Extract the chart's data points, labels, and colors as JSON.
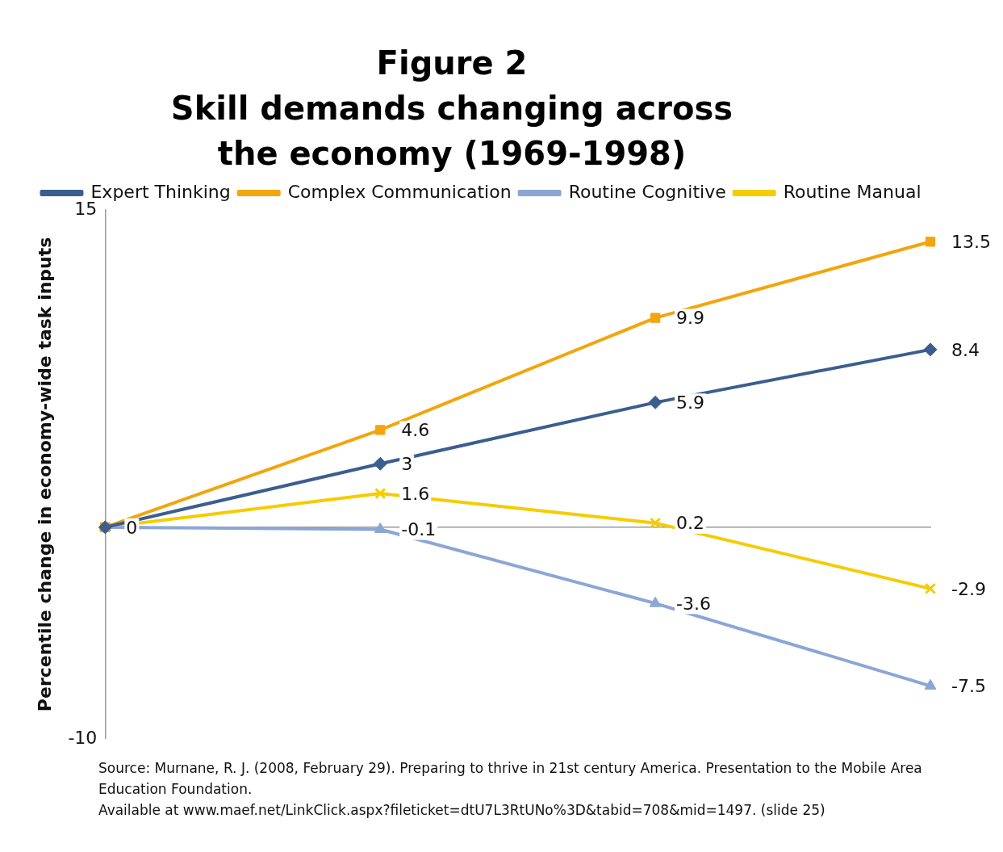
{
  "chart_data": {
    "type": "line",
    "title": "Figure 2",
    "subtitle": "Skill demands changing across the economy (1969-1998)",
    "ylabel": "Percentile change in economy-wide task inputs",
    "categories": [
      null,
      null,
      null,
      null
    ],
    "series": [
      {
        "name": "Expert Thinking",
        "color": "#3b5e8f",
        "marker": "diamond",
        "values": [
          0,
          3,
          5.9,
          8.4
        ],
        "value_labels": [
          null,
          "3",
          "5.9",
          "8.4"
        ]
      },
      {
        "name": "Complex Communication",
        "color": "#f2a50c",
        "marker": "square",
        "values": [
          0,
          4.6,
          9.9,
          13.5
        ],
        "value_labels": [
          null,
          "4.6",
          "9.9",
          "13.5"
        ]
      },
      {
        "name": "Routine Cognitive",
        "color": "#8ba6d6",
        "marker": "triangle",
        "values": [
          0,
          -0.1,
          -3.6,
          -7.5
        ],
        "value_labels": [
          null,
          "-0.1",
          "-3.6",
          "-7.5"
        ]
      },
      {
        "name": "Routine Manual",
        "color": "#f5cc00",
        "marker": "cross",
        "values": [
          0,
          1.6,
          0.2,
          -2.9
        ],
        "value_labels": [
          "0",
          "1.6",
          "0.2",
          "-2.9"
        ]
      }
    ],
    "ylim": [
      -10,
      15
    ],
    "yticks": [
      -10,
      15
    ],
    "grid": false,
    "legend": "top",
    "tick_labels": "y",
    "annotations": [
      "Source: Murnane, R. J. (2008, February 29). Preparing to thrive in 21st century America. Presentation to the Mobile Area Education  Foundation.",
      "Available at www.maef.net/LinkClick.aspx?fileticket=dtU7L3RtUNo%3D&tabid=708&mid=1497.  (slide 25)"
    ]
  }
}
